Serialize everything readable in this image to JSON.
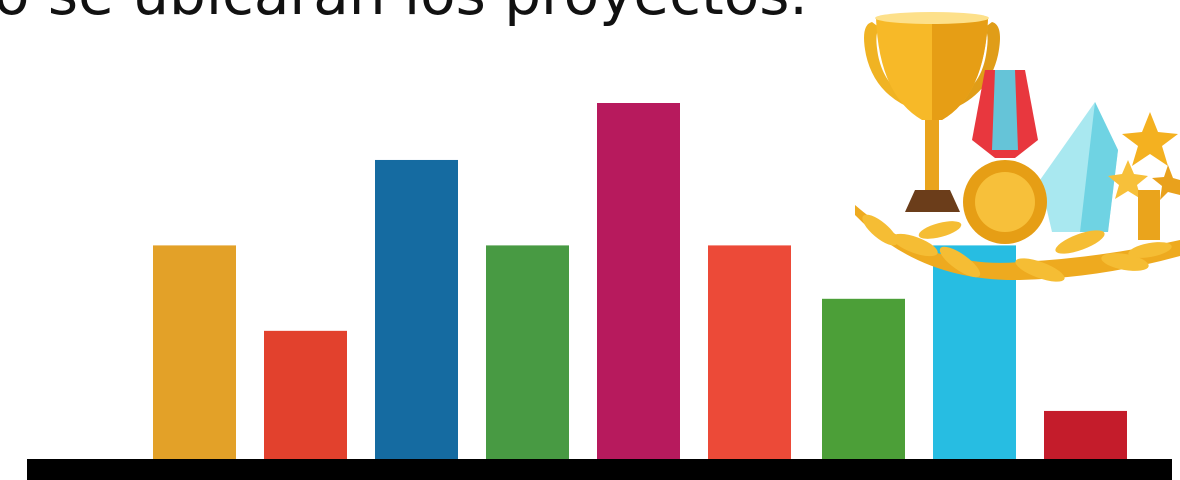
{
  "chart_data": {
    "type": "bar",
    "title": "o se ubicarán los proyectos.",
    "categories": [
      null,
      null,
      null,
      null,
      null,
      null,
      null,
      null,
      null
    ],
    "values": [
      60,
      36,
      84,
      60,
      100,
      60,
      45,
      60,
      13.5
    ],
    "colors": [
      "#e3a128",
      "#e2412d",
      "#156ba1",
      "#489a43",
      "#b71a5d",
      "#ec4a38",
      "#4c9f38",
      "#27bde2",
      "#c41c2b"
    ],
    "ylim": [
      0,
      100
    ]
  }
}
